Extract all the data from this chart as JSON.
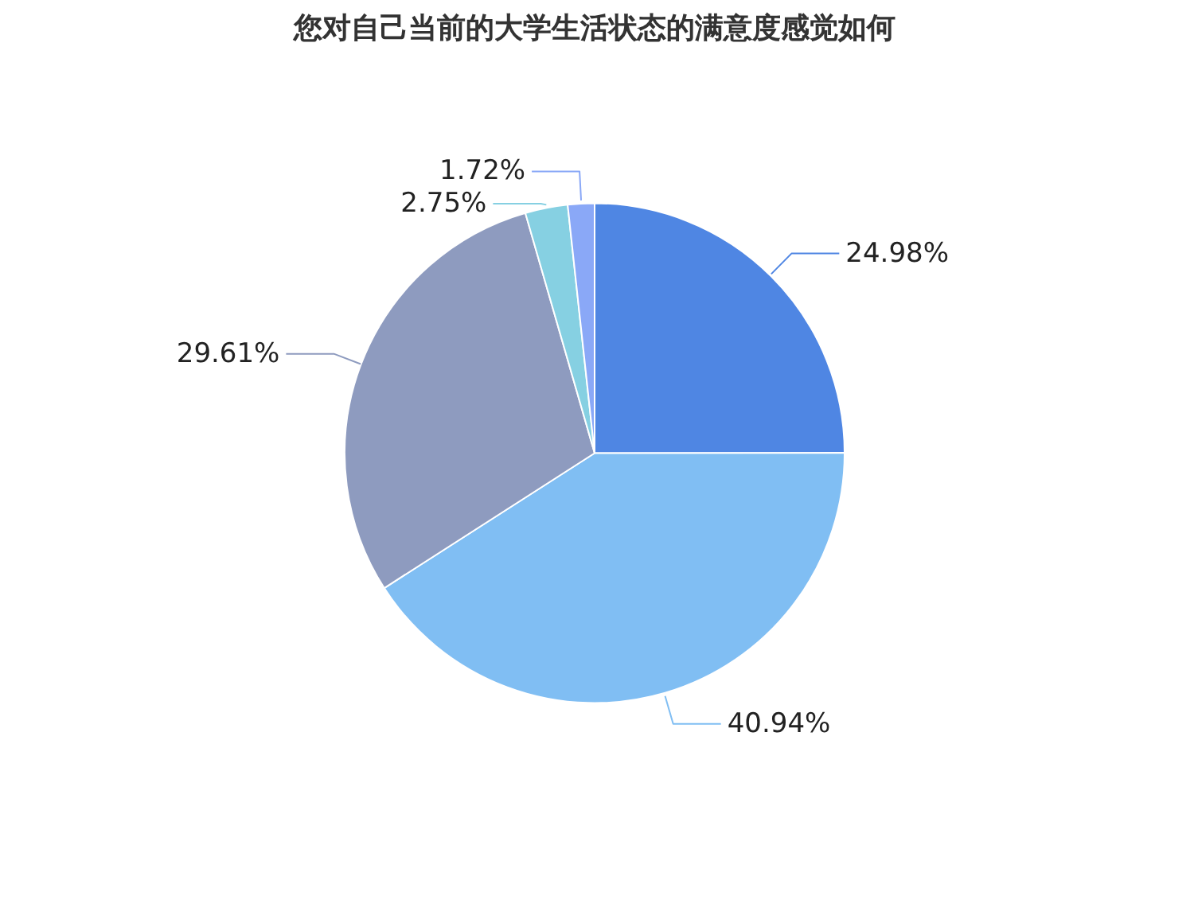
{
  "chart_data": {
    "type": "pie",
    "title": "您对自己当前的大学生活状态的满意度感觉如何",
    "categories": [
      null,
      null,
      null,
      null,
      null
    ],
    "values": [
      24.98,
      40.94,
      29.61,
      2.75,
      1.72
    ],
    "value_labels": [
      "24.98%",
      "40.94%",
      "29.61%",
      "2.75%",
      "1.72%"
    ],
    "colors": [
      "#4f86e3",
      "#80bef3",
      "#8e9bbf",
      "#86d0e2",
      "#8aa8f7"
    ]
  }
}
